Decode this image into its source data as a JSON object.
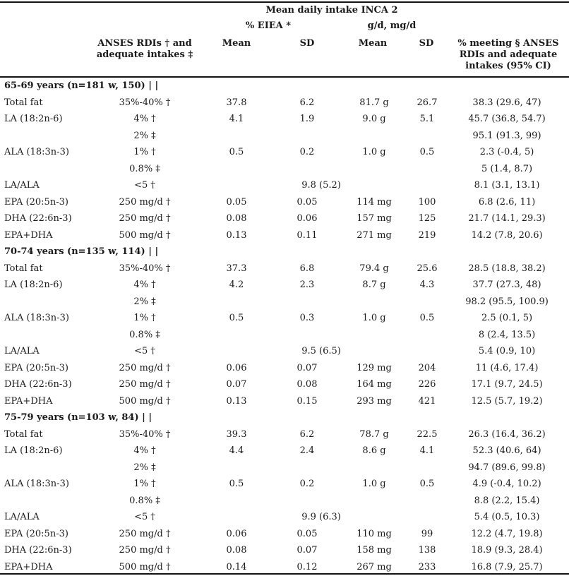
{
  "header": {
    "group_title": "Mean daily intake INCA 2",
    "eiea_label": "% EIEA *",
    "gd_label": "g/d, mg/d",
    "rdi_label_line1": "ANSES RDIs † and",
    "rdi_label_line2": "adequate intakes ‡",
    "mean1": "Mean",
    "sd1": "SD",
    "mean2": "Mean",
    "sd2": "SD",
    "meeting_line1": "% meeting § ANSES",
    "meeting_line2": "RDIs and adequate",
    "meeting_line3": "intakes (95% CI)"
  },
  "rows": [
    {
      "type": "section",
      "label": "65-69 years (n=181 w, 150) | |"
    },
    {
      "label": "Total fat",
      "rdi": "35%-40% †",
      "mean1": "37.8",
      "sd1": "6.2",
      "mean2": "81.7 g",
      "sd2": "26.7",
      "pct": "38.3 (29.6, 47)"
    },
    {
      "label": "LA (18:2n-6)",
      "rdi": "4% †",
      "mean1": "4.1",
      "sd1": "1.9",
      "mean2": "9.0 g",
      "sd2": "5.1",
      "pct": "45.7 (36.8, 54.7)"
    },
    {
      "label": "",
      "rdi": "2% ‡",
      "mean1": "",
      "sd1": "",
      "mean2": "",
      "sd2": "",
      "pct": "95.1 (91.3, 99)"
    },
    {
      "label": "ALA (18:3n-3)",
      "rdi": "1% †",
      "mean1": "0.5",
      "sd1": "0.2",
      "mean2": "1.0 g",
      "sd2": "0.5",
      "pct": "2.3 (-0.4, 5)"
    },
    {
      "label": "",
      "rdi": "0.8% ‡",
      "mean1": "",
      "sd1": "",
      "mean2": "",
      "sd2": "",
      "pct": "5 (1.4, 8.7)"
    },
    {
      "label": "LA/ALA",
      "rdi": "<5 †",
      "ratio": "9.8 (5.2)",
      "pct": "8.1 (3.1, 13.1)"
    },
    {
      "label": "EPA (20:5n-3)",
      "rdi": "250 mg/d †",
      "mean1": "0.05",
      "sd1": "0.05",
      "mean2": "114 mg",
      "sd2": "100",
      "pct": "6.8 (2.6, 11)"
    },
    {
      "label": "DHA (22:6n-3)",
      "rdi": "250 mg/d †",
      "mean1": "0.08",
      "sd1": "0.06",
      "mean2": "157 mg",
      "sd2": "125",
      "pct": "21.7 (14.1, 29.3)"
    },
    {
      "label": "EPA+DHA",
      "rdi": "500 mg/d †",
      "mean1": "0.13",
      "sd1": "0.11",
      "mean2": "271 mg",
      "sd2": "219",
      "pct": "14.2 (7.8, 20.6)"
    },
    {
      "type": "section",
      "label": "70-74 years (n=135 w, 114) | |"
    },
    {
      "label": "Total fat",
      "rdi": "35%-40% †",
      "mean1": "37.3",
      "sd1": "6.8",
      "mean2": "79.4 g",
      "sd2": "25.6",
      "pct": "28.5 (18.8, 38.2)"
    },
    {
      "label": "LA (18:2n-6)",
      "rdi": "4% †",
      "mean1": "4.2",
      "sd1": "2.3",
      "mean2": "8.7 g",
      "sd2": "4.3",
      "pct": "37.7 (27.3, 48)"
    },
    {
      "label": "",
      "rdi": "2% ‡",
      "mean1": "",
      "sd1": "",
      "mean2": "",
      "sd2": "",
      "pct": "98.2 (95.5, 100.9)"
    },
    {
      "label": "ALA (18:3n-3)",
      "rdi": "1% †",
      "mean1": "0.5",
      "sd1": "0.3",
      "mean2": "1.0 g",
      "sd2": "0.5",
      "pct": "2.5 (0.1, 5)"
    },
    {
      "label": "",
      "rdi": "0.8% ‡",
      "mean1": "",
      "sd1": "",
      "mean2": "",
      "sd2": "",
      "pct": "8 (2.4, 13.5)"
    },
    {
      "label": "LA/ALA",
      "rdi": "<5 †",
      "ratio": "9.5 (6.5)",
      "pct": "5.4 (0.9, 10)"
    },
    {
      "label": "EPA (20:5n-3)",
      "rdi": "250 mg/d †",
      "mean1": "0.06",
      "sd1": "0.07",
      "mean2": "129 mg",
      "sd2": "204",
      "pct": "11 (4.6, 17.4)"
    },
    {
      "label": "DHA (22:6n-3)",
      "rdi": "250 mg/d †",
      "mean1": "0.07",
      "sd1": "0.08",
      "mean2": "164 mg",
      "sd2": "226",
      "pct": "17.1 (9.7, 24.5)"
    },
    {
      "label": "EPA+DHA",
      "rdi": "500 mg/d †",
      "mean1": "0.13",
      "sd1": "0.15",
      "mean2": "293 mg",
      "sd2": "421",
      "pct": "12.5 (5.7, 19.2)"
    },
    {
      "type": "section",
      "label": "75-79 years (n=103 w, 84) | |"
    },
    {
      "label": "Total fat",
      "rdi": "35%-40% †",
      "mean1": "39.3",
      "sd1": "6.2",
      "mean2": "78.7 g",
      "sd2": "22.5",
      "pct": "26.3 (16.4, 36.2)"
    },
    {
      "label": "LA (18:2n-6)",
      "rdi": "4% †",
      "mean1": "4.4",
      "sd1": "2.4",
      "mean2": "8.6 g",
      "sd2": "4.1",
      "pct": "52.3 (40.6, 64)"
    },
    {
      "label": "",
      "rdi": "2% ‡",
      "mean1": "",
      "sd1": "",
      "mean2": "",
      "sd2": "",
      "pct": "94.7 (89.6, 99.8)"
    },
    {
      "label": "ALA (18:3n-3)",
      "rdi": "1% †",
      "mean1": "0.5",
      "sd1": "0.2",
      "mean2": "1.0 g",
      "sd2": "0.5",
      "pct": "4.9 (-0.4, 10.2)"
    },
    {
      "label": "",
      "rdi": "0.8% ‡",
      "mean1": "",
      "sd1": "",
      "mean2": "",
      "sd2": "",
      "pct": "8.8 (2.2, 15.4)"
    },
    {
      "label": "LA/ALA",
      "rdi": "<5 †",
      "ratio": "9.9 (6.3)",
      "pct": "5.4 (0.5, 10.3)"
    },
    {
      "label": "EPA (20:5n-3)",
      "rdi": "250 mg/d †",
      "mean1": "0.06",
      "sd1": "0.05",
      "mean2": "110 mg",
      "sd2": "99",
      "pct": "12.2 (4.7, 19.8)"
    },
    {
      "label": "DHA (22:6n-3)",
      "rdi": "250 mg/d †",
      "mean1": "0.08",
      "sd1": "0.07",
      "mean2": "158 mg",
      "sd2": "138",
      "pct": "18.9 (9.3, 28.4)"
    },
    {
      "label": "EPA+DHA",
      "rdi": "500 mg/d †",
      "mean1": "0.14",
      "sd1": "0.12",
      "mean2": "267 mg",
      "sd2": "233",
      "pct": "16.8 (7.9, 25.7)"
    }
  ]
}
